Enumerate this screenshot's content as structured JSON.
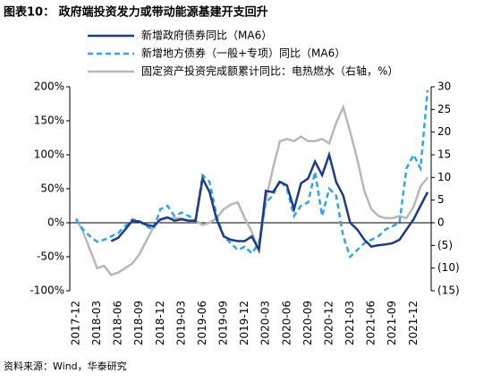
{
  "chart_data": {
    "type": "line",
    "title": "图表10：  政府端投资发力或带动能源基建开支回升",
    "source": "资料来源：Wind，华泰研究",
    "categories": [
      "2017-12",
      null,
      null,
      "2018-03",
      null,
      null,
      "2018-06",
      null,
      null,
      "2018-09",
      null,
      null,
      "2018-12",
      null,
      null,
      "2019-03",
      null,
      null,
      "2019-06",
      null,
      null,
      "2019-09",
      null,
      null,
      "2019-12",
      null,
      null,
      "2020-03",
      null,
      null,
      "2020-06",
      null,
      null,
      "2020-09",
      null,
      null,
      "2020-12",
      null,
      null,
      "2021-03",
      null,
      null,
      "2021-06",
      null,
      null,
      "2021-09",
      null,
      null,
      "2021-12",
      null,
      null
    ],
    "ylim": [
      -100,
      200
    ],
    "yticks": [
      {
        "value": -100,
        "label": "-100%"
      },
      {
        "value": -50,
        "label": "-50%"
      },
      {
        "value": 0,
        "label": "0%"
      },
      {
        "value": 50,
        "label": "50%"
      },
      {
        "value": 100,
        "label": "100%"
      },
      {
        "value": 150,
        "label": "150%"
      },
      {
        "value": 200,
        "label": "200%"
      }
    ],
    "y2lim": [
      -15,
      30
    ],
    "y2ticks": [
      {
        "value": -15,
        "label": "(15)"
      },
      {
        "value": -10,
        "label": "(10)"
      },
      {
        "value": -5,
        "label": "(5)"
      },
      0,
      5,
      10,
      15,
      20,
      25,
      30
    ],
    "series": [
      {
        "name": "新增政府债券同比（MA6）",
        "color": "#1f3a87",
        "line_style": "solid",
        "values": [
          null,
          null,
          null,
          null,
          null,
          -27,
          -22,
          -10,
          3,
          2,
          -3,
          -5,
          5,
          8,
          3,
          5,
          3,
          3,
          65,
          45,
          5,
          -20,
          -25,
          -27,
          -27,
          -20,
          -40,
          47,
          45,
          60,
          55,
          20,
          58,
          65,
          90,
          70,
          100,
          60,
          40,
          0,
          -10,
          -25,
          -35,
          -33,
          -32,
          -30,
          -25,
          -10,
          5,
          25,
          45
        ]
      },
      {
        "name": "新增地方债券（一般+专项）同比（MA6）",
        "color": "#2ea6ea",
        "line_style": "dashed",
        "values": [
          5,
          -10,
          -20,
          -28,
          -25,
          -20,
          -15,
          -5,
          5,
          2,
          -5,
          -10,
          20,
          25,
          10,
          15,
          10,
          5,
          70,
          60,
          10,
          -20,
          -30,
          -40,
          -35,
          -45,
          -30,
          30,
          40,
          63,
          50,
          10,
          25,
          30,
          75,
          10,
          50,
          40,
          -20,
          -50,
          -40,
          -30,
          -25,
          -20,
          -10,
          -5,
          0,
          80,
          100,
          80,
          195
        ]
      },
      {
        "name": "固定资产投资完成额累计同比：电热燃水（右轴，%）",
        "color": "#b8b8b8",
        "line_style": "solid",
        "axis": "y2",
        "values": [
          1,
          -2,
          -6,
          -10,
          -9.5,
          -11.5,
          -11,
          -10,
          -9,
          -7,
          -4,
          -1,
          0.5,
          1,
          1,
          1,
          0.5,
          0.5,
          -0.5,
          0,
          1,
          3,
          4,
          4.5,
          1,
          -2,
          -6,
          5,
          12,
          18,
          18.5,
          18,
          19,
          18,
          18,
          18.5,
          17.5,
          22,
          25.5,
          20,
          14,
          7,
          3,
          1.5,
          1,
          1,
          1.5,
          1,
          3.5,
          8,
          10
        ]
      }
    ]
  }
}
